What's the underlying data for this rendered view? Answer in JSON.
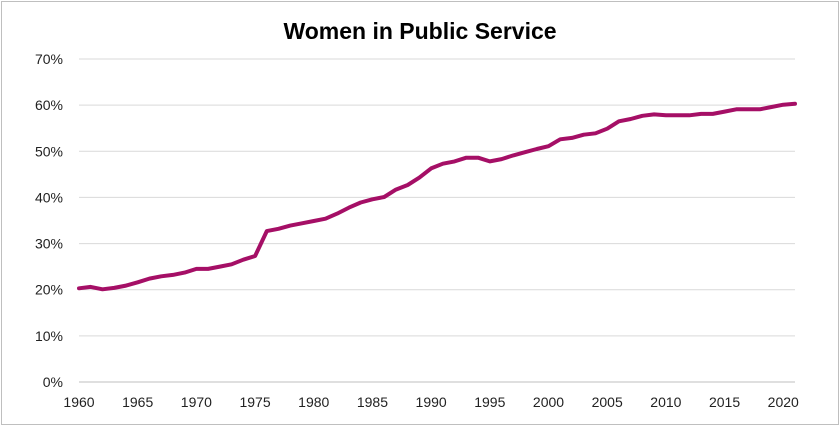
{
  "chart_data": {
    "type": "line",
    "title": "Women in Public Service",
    "xlabel": "",
    "ylabel": "",
    "xlim": [
      1960,
      2021
    ],
    "ylim": [
      0,
      70
    ],
    "x_ticks": [
      1960,
      1965,
      1970,
      1975,
      1980,
      1985,
      1990,
      1995,
      2000,
      2005,
      2010,
      2015,
      2020
    ],
    "x_tick_labels": [
      "1960",
      "1965",
      "1970",
      "1975",
      "1980",
      "1985",
      "1990",
      "1995",
      "2000",
      "2005",
      "2010",
      "2015",
      "2020"
    ],
    "y_ticks": [
      0,
      10,
      20,
      30,
      40,
      50,
      60,
      70
    ],
    "y_tick_labels": [
      "0%",
      "10%",
      "20%",
      "30%",
      "40%",
      "50%",
      "60%",
      "70%"
    ],
    "grid": "horizontal",
    "legend": "none",
    "series": [
      {
        "color": "#a50f66",
        "x": [
          1960,
          1961,
          1962,
          1963,
          1964,
          1965,
          1966,
          1967,
          1968,
          1969,
          1970,
          1971,
          1972,
          1973,
          1974,
          1975,
          1976,
          1977,
          1978,
          1979,
          1980,
          1981,
          1982,
          1983,
          1984,
          1985,
          1986,
          1987,
          1988,
          1989,
          1990,
          1991,
          1992,
          1993,
          1994,
          1995,
          1996,
          1997,
          1998,
          1999,
          2000,
          2001,
          2002,
          2003,
          2004,
          2005,
          2006,
          2007,
          2008,
          2009,
          2010,
          2011,
          2012,
          2013,
          2014,
          2015,
          2016,
          2017,
          2018,
          2019,
          2020,
          2021
        ],
        "y": [
          20.3,
          20.6,
          20.1,
          20.4,
          20.9,
          21.6,
          22.4,
          22.9,
          23.2,
          23.7,
          24.5,
          24.5,
          25.0,
          25.5,
          26.5,
          27.3,
          32.7,
          33.2,
          33.9,
          34.4,
          34.9,
          35.4,
          36.5,
          37.8,
          38.9,
          39.6,
          40.1,
          41.7,
          42.7,
          44.3,
          46.3,
          47.3,
          47.8,
          48.6,
          48.6,
          47.8,
          48.3,
          49.1,
          49.8,
          50.5,
          51.1,
          52.6,
          52.9,
          53.6,
          53.9,
          54.9,
          56.5,
          57.0,
          57.7,
          58.0,
          57.8,
          57.8,
          57.8,
          58.1,
          58.1,
          58.6,
          59.1,
          59.1,
          59.1,
          59.6,
          60.1,
          60.3
        ]
      }
    ]
  }
}
